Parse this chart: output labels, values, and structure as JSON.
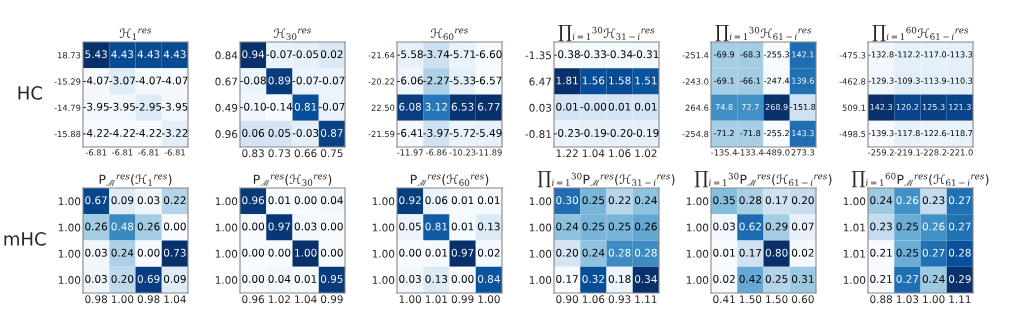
{
  "chart_data": [
    {
      "type": "heatmap",
      "title": "ℋ$_{1}$$^{res}$",
      "ylabel": "HC",
      "data_labels": true,
      "categories": [
        "-6.81",
        "-6.81",
        "-6.81",
        "-6.81"
      ],
      "y_categories": [
        "18.73",
        "-15.29",
        "-14.79",
        "-15.88"
      ],
      "cells": [
        [
          5.43,
          4.43,
          4.43,
          4.43
        ],
        [
          -4.07,
          -3.07,
          -4.07,
          -4.07
        ],
        [
          -3.95,
          -3.95,
          -2.95,
          -3.95
        ],
        [
          -4.22,
          -4.22,
          -4.22,
          -3.22
        ]
      ],
      "cell_labels": [
        [
          "5.43",
          "4.43",
          "4.43",
          "4.43"
        ],
        [
          "-4.07",
          "-3.07",
          "-4.07",
          "-4.07"
        ],
        [
          "-3.95",
          "-3.95",
          "-2.95",
          "-3.95"
        ],
        [
          "-4.22",
          "-4.22",
          "-4.22",
          "-3.22"
        ]
      ]
    },
    {
      "type": "heatmap",
      "title": "ℋ$_{30}$$^{res}$",
      "data_labels": true,
      "categories": [
        "0.83",
        "0.73",
        "0.66",
        "0.75"
      ],
      "y_categories": [
        "0.84",
        "0.67",
        "0.49",
        "0.96"
      ],
      "cells": [
        [
          0.94,
          -0.07,
          -0.05,
          0.02
        ],
        [
          -0.08,
          0.89,
          -0.07,
          -0.07
        ],
        [
          -0.1,
          -0.14,
          0.81,
          -0.07
        ],
        [
          0.06,
          0.05,
          -0.03,
          0.87
        ]
      ],
      "cell_labels": [
        [
          "0.94",
          "-0.07",
          "-0.05",
          "0.02"
        ],
        [
          "-0.08",
          "0.89",
          "-0.07",
          "-0.07"
        ],
        [
          "-0.10",
          "-0.14",
          "0.81",
          "-0.07"
        ],
        [
          "0.06",
          "0.05",
          "-0.03",
          "0.87"
        ]
      ]
    },
    {
      "type": "heatmap",
      "title": "ℋ$_{60}$$^{res}$",
      "data_labels": true,
      "categories": [
        "-11.97",
        "-6.86",
        "-10.23",
        "-11.89"
      ],
      "y_categories": [
        "-21.64",
        "-20.22",
        "22.50",
        "-21.59"
      ],
      "cells": [
        [
          -5.58,
          -3.74,
          -5.71,
          -6.6
        ],
        [
          -6.06,
          -2.27,
          -5.33,
          -6.57
        ],
        [
          6.08,
          3.12,
          6.53,
          6.77
        ],
        [
          -6.41,
          -3.97,
          -5.72,
          -5.49
        ]
      ],
      "cell_labels": [
        [
          "-5.58",
          "-3.74",
          "-5.71",
          "-6.60"
        ],
        [
          "-6.06",
          "-2.27",
          "-5.33",
          "-6.57"
        ],
        [
          "6.08",
          "3.12",
          "6.53",
          "6.77"
        ],
        [
          "-6.41",
          "-3.97",
          "-5.72",
          "-5.49"
        ]
      ]
    },
    {
      "type": "heatmap",
      "title": "∏$_{i=1}$$^{30}$ℋ$_{31−i}$$^{res}$",
      "data_labels": true,
      "categories": [
        "1.22",
        "1.04",
        "1.06",
        "1.02"
      ],
      "y_categories": [
        "-1.35",
        "6.47",
        "0.03",
        "-0.81"
      ],
      "cells": [
        [
          -0.38,
          -0.33,
          -0.34,
          -0.31
        ],
        [
          1.81,
          1.56,
          1.58,
          1.51
        ],
        [
          0.01,
          0.0,
          0.01,
          0.01
        ],
        [
          -0.23,
          -0.19,
          -0.2,
          -0.19
        ]
      ],
      "cell_labels": [
        [
          "-0.38",
          "-0.33",
          "-0.34",
          "-0.31"
        ],
        [
          "1.81",
          "1.56",
          "1.58",
          "1.51"
        ],
        [
          "0.01",
          "-0.00",
          "0.01",
          "0.01"
        ],
        [
          "-0.23",
          "-0.19",
          "-0.20",
          "-0.19"
        ]
      ]
    },
    {
      "type": "heatmap",
      "title": "∏$_{i=1}$$^{30}$ℋ$_{61−i}$$^{res}$",
      "data_labels": true,
      "categories": [
        "-135.4",
        "-133.4",
        "-489.0",
        "273.3"
      ],
      "y_categories": [
        "-251.4",
        "-243.0",
        "264.6",
        "-254.8"
      ],
      "cells": [
        [
          -69.9,
          -68.3,
          -255.3,
          142.1
        ],
        [
          -69.1,
          -66.1,
          -247.4,
          139.6
        ],
        [
          74.8,
          72.7,
          268.9,
          -151.8
        ],
        [
          -71.2,
          -71.8,
          -255.2,
          143.3
        ]
      ],
      "cell_labels": [
        [
          "-69.9",
          "-68.3",
          "-255.3",
          "142.1"
        ],
        [
          "-69.1",
          "-66.1",
          "-247.4",
          "139.6"
        ],
        [
          "74.8",
          "72.7",
          "268.9",
          "-151.8"
        ],
        [
          "-71.2",
          "-71.8",
          "-255.2",
          "143.3"
        ]
      ]
    },
    {
      "type": "heatmap",
      "title": "∏$_{i=1}$$^{60}$ℋ$_{61−i}$$^{res}$",
      "data_labels": true,
      "categories": [
        "-259.2",
        "-219.1",
        "-228.2",
        "-221.0"
      ],
      "y_categories": [
        "-475.3",
        "-462.8",
        "509.1",
        "-498.5"
      ],
      "cells": [
        [
          -132.8,
          -112.2,
          -117.0,
          -113.3
        ],
        [
          -129.3,
          -109.3,
          -113.9,
          -110.3
        ],
        [
          142.3,
          120.2,
          125.3,
          121.3
        ],
        [
          -139.3,
          -117.8,
          -122.6,
          -118.7
        ]
      ],
      "cell_labels": [
        [
          "-132.8",
          "-112.2",
          "-117.0",
          "-113.3"
        ],
        [
          "-129.3",
          "-109.3",
          "-113.9",
          "-110.3"
        ],
        [
          "142.3",
          "120.2",
          "125.3",
          "121.3"
        ],
        [
          "-139.3",
          "-117.8",
          "-122.6",
          "-118.7"
        ]
      ]
    },
    {
      "type": "heatmap",
      "title": "P$_{ℳ}$$^{res}$(ℋ$_{1}$$^{res}$)",
      "ylabel": "mHC",
      "data_labels": true,
      "categories": [
        "0.98",
        "1.00",
        "0.98",
        "1.04"
      ],
      "y_categories": [
        "1.00",
        "1.00",
        "1.00",
        "1.00"
      ],
      "cells": [
        [
          0.67,
          0.09,
          0.03,
          0.22
        ],
        [
          0.26,
          0.48,
          0.26,
          0.0
        ],
        [
          0.03,
          0.24,
          0.0,
          0.73
        ],
        [
          0.03,
          0.2,
          0.69,
          0.09
        ]
      ],
      "cell_labels": [
        [
          "0.67",
          "0.09",
          "0.03",
          "0.22"
        ],
        [
          "0.26",
          "0.48",
          "0.26",
          "0.00"
        ],
        [
          "0.03",
          "0.24",
          "0.00",
          "0.73"
        ],
        [
          "0.03",
          "0.20",
          "0.69",
          "0.09"
        ]
      ]
    },
    {
      "type": "heatmap",
      "title": "P$_{ℳ}$$^{res}$(ℋ$_{30}$$^{res}$)",
      "data_labels": true,
      "categories": [
        "0.96",
        "1.02",
        "1.04",
        "0.99"
      ],
      "y_categories": [
        "1.00",
        "1.00",
        "1.00",
        "1.00"
      ],
      "cells": [
        [
          0.96,
          0.01,
          0.0,
          0.04
        ],
        [
          0.0,
          0.97,
          0.03,
          0.0
        ],
        [
          0.0,
          0.0,
          1.0,
          0.0
        ],
        [
          0.0,
          0.04,
          0.01,
          0.95
        ]
      ],
      "cell_labels": [
        [
          "0.96",
          "0.01",
          "0.00",
          "0.04"
        ],
        [
          "0.00",
          "0.97",
          "0.03",
          "0.00"
        ],
        [
          "0.00",
          "0.00",
          "1.00",
          "0.00"
        ],
        [
          "0.00",
          "0.04",
          "0.01",
          "0.95"
        ]
      ]
    },
    {
      "type": "heatmap",
      "title": "P$_{ℳ}$$^{res}$(ℋ$_{60}$$^{res}$)",
      "data_labels": true,
      "categories": [
        "1.00",
        "1.01",
        "0.99",
        "1.00"
      ],
      "y_categories": [
        "1.00",
        "1.00",
        "1.00",
        "1.00"
      ],
      "cells": [
        [
          0.92,
          0.06,
          0.01,
          0.01
        ],
        [
          0.05,
          0.81,
          0.01,
          0.13
        ],
        [
          0.0,
          0.01,
          0.97,
          0.02
        ],
        [
          0.03,
          0.13,
          0.0,
          0.84
        ]
      ],
      "cell_labels": [
        [
          "0.92",
          "0.06",
          "0.01",
          "0.01"
        ],
        [
          "0.05",
          "0.81",
          "0.01",
          "0.13"
        ],
        [
          "0.00",
          "0.01",
          "0.97",
          "0.02"
        ],
        [
          "0.03",
          "0.13",
          "0.00",
          "0.84"
        ]
      ]
    },
    {
      "type": "heatmap",
      "title": "∏$_{i=1}$$^{30}$P$_{ℳ}$$^{res}$(ℋ$_{31−i}$$^{res}$)",
      "data_labels": true,
      "categories": [
        "0.90",
        "1.06",
        "0.93",
        "1.11"
      ],
      "y_categories": [
        "1.00",
        "1.00",
        "1.00",
        "1.00"
      ],
      "cells": [
        [
          0.3,
          0.25,
          0.22,
          0.24
        ],
        [
          0.24,
          0.25,
          0.25,
          0.26
        ],
        [
          0.2,
          0.24,
          0.28,
          0.28
        ],
        [
          0.17,
          0.32,
          0.18,
          0.34
        ]
      ],
      "cell_labels": [
        [
          "0.30",
          "0.25",
          "0.22",
          "0.24"
        ],
        [
          "0.24",
          "0.25",
          "0.25",
          "0.26"
        ],
        [
          "0.20",
          "0.24",
          "0.28",
          "0.28"
        ],
        [
          "0.17",
          "0.32",
          "0.18",
          "0.34"
        ]
      ]
    },
    {
      "type": "heatmap",
      "title": "∏$_{i=1}$$^{30}$P$_{ℳ}$$^{res}$(ℋ$_{61−i}$$^{res}$)",
      "data_labels": true,
      "categories": [
        "0.41",
        "1.50",
        "1.50",
        "0.60"
      ],
      "y_categories": [
        "1.00",
        "1.00",
        "1.00",
        "1.00"
      ],
      "cells": [
        [
          0.35,
          0.28,
          0.17,
          0.2
        ],
        [
          0.03,
          0.62,
          0.29,
          0.07
        ],
        [
          0.01,
          0.17,
          0.8,
          0.02
        ],
        [
          0.02,
          0.42,
          0.25,
          0.31
        ]
      ],
      "cell_labels": [
        [
          "0.35",
          "0.28",
          "0.17",
          "0.20"
        ],
        [
          "0.03",
          "0.62",
          "0.29",
          "0.07"
        ],
        [
          "0.01",
          "0.17",
          "0.80",
          "0.02"
        ],
        [
          "0.02",
          "0.42",
          "0.25",
          "0.31"
        ]
      ]
    },
    {
      "type": "heatmap",
      "title": "∏$_{i=1}$$^{60}$P$_{ℳ}$$^{res}$(ℋ$_{61−i}$$^{res}$)",
      "data_labels": true,
      "categories": [
        "0.88",
        "1.03",
        "1.00",
        "1.11"
      ],
      "y_categories": [
        "1.00",
        "1.01",
        "1.01",
        "1.00"
      ],
      "cells": [
        [
          0.24,
          0.26,
          0.23,
          0.27
        ],
        [
          0.23,
          0.25,
          0.26,
          0.27
        ],
        [
          0.21,
          0.25,
          0.27,
          0.28
        ],
        [
          0.21,
          0.27,
          0.24,
          0.29
        ]
      ],
      "cell_labels": [
        [
          "0.24",
          "0.26",
          "0.23",
          "0.27"
        ],
        [
          "0.23",
          "0.25",
          "0.26",
          "0.27"
        ],
        [
          "0.21",
          "0.25",
          "0.27",
          "0.28"
        ],
        [
          "0.21",
          "0.27",
          "0.24",
          "0.29"
        ]
      ]
    }
  ]
}
